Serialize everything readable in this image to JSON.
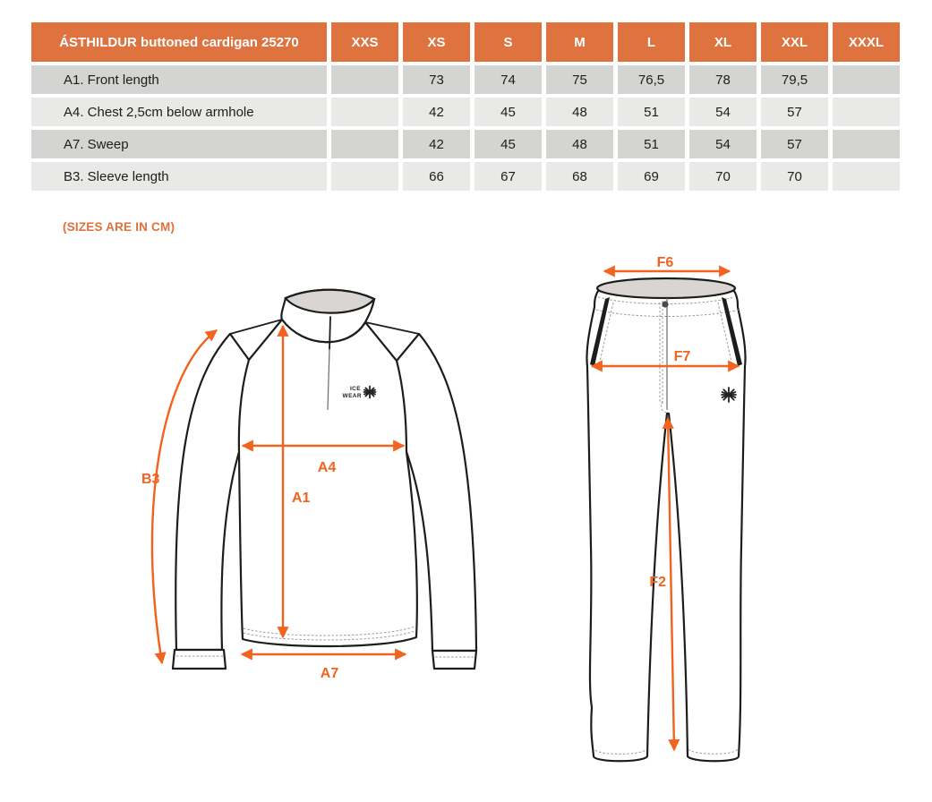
{
  "table": {
    "title": "ÁSTHILDUR buttoned cardigan 25270",
    "size_columns": [
      "XXS",
      "XS",
      "S",
      "M",
      "L",
      "XL",
      "XXL",
      "XXXL"
    ],
    "rows": [
      {
        "label": "A1. Front length",
        "values": [
          "",
          "73",
          "74",
          "75",
          "76,5",
          "78",
          "79,5",
          ""
        ]
      },
      {
        "label": "A4. Chest 2,5cm below armhole",
        "values": [
          "",
          "42",
          "45",
          "48",
          "51",
          "54",
          "57",
          ""
        ]
      },
      {
        "label": "A7. Sweep",
        "values": [
          "",
          "42",
          "45",
          "48",
          "51",
          "54",
          "57",
          ""
        ]
      },
      {
        "label": "B3. Sleeve length",
        "values": [
          "",
          "66",
          "67",
          "68",
          "69",
          "70",
          "70",
          ""
        ]
      }
    ]
  },
  "note": "(SIZES ARE IN CM)",
  "diagram": {
    "sweater": {
      "b3": "B3",
      "a4": "A4",
      "a1": "A1",
      "a7": "A7",
      "logo_line1": "ICE",
      "logo_line2": "WEAR"
    },
    "pants": {
      "f6": "F6",
      "f7": "F7",
      "f2": "F2"
    }
  },
  "colors": {
    "header_orange": "#DF7340",
    "arrow_orange": "#F2631F",
    "note_orange": "#E0703C",
    "row_dark": "#D4D4D3",
    "row_light": "#E9E9E7",
    "garment_line": "#1D1D1B",
    "collar_gray": "#D8D5D2"
  }
}
